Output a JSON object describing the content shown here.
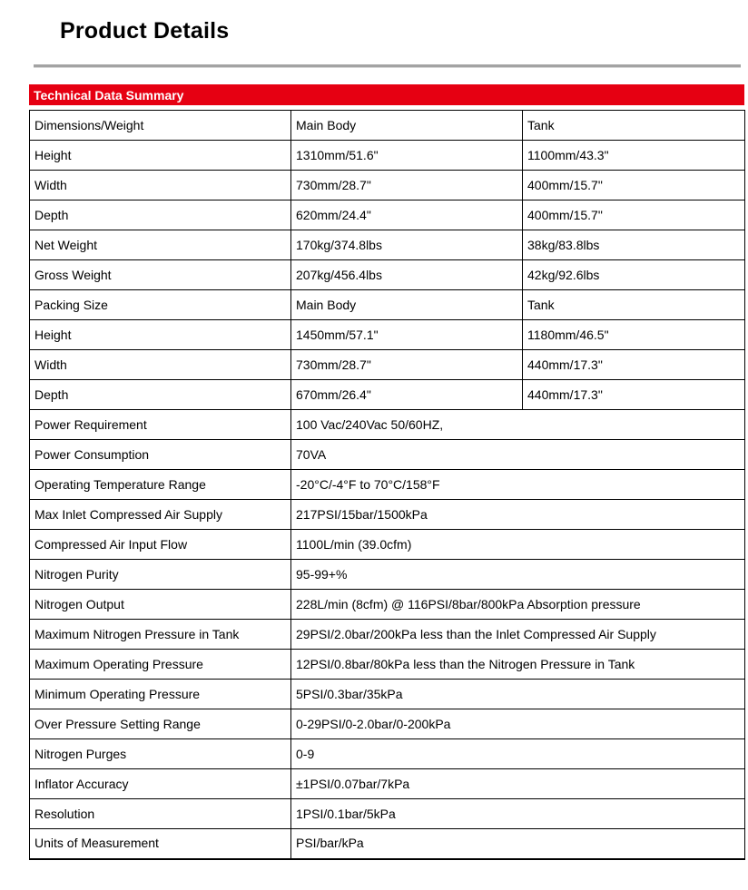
{
  "page_title": "Product Details",
  "section": {
    "header": "Technical Data Summary"
  },
  "colors": {
    "accent_red": "#e60012",
    "table_border": "#000000",
    "rule_gray": "#a3a3a3",
    "header_text": "#ffffff"
  },
  "table": {
    "rows": [
      {
        "cells": [
          "Dimensions/Weight",
          "Main Body",
          "Tank"
        ]
      },
      {
        "cells": [
          "Height",
          "1310mm/51.6\"",
          "1100mm/43.3\""
        ]
      },
      {
        "cells": [
          "Width",
          "730mm/28.7\"",
          "400mm/15.7\""
        ]
      },
      {
        "cells": [
          "Depth",
          "620mm/24.4\"",
          "400mm/15.7\""
        ]
      },
      {
        "cells": [
          "Net Weight",
          "170kg/374.8lbs",
          "38kg/83.8lbs"
        ]
      },
      {
        "cells": [
          "Gross Weight",
          "207kg/456.4lbs",
          "42kg/92.6lbs"
        ]
      },
      {
        "cells": [
          "Packing Size",
          "Main Body",
          "Tank"
        ]
      },
      {
        "cells": [
          "Height",
          "1450mm/57.1\"",
          "1180mm/46.5\""
        ]
      },
      {
        "cells": [
          "Width",
          "730mm/28.7\"",
          "440mm/17.3\""
        ]
      },
      {
        "cells": [
          "Depth",
          "670mm/26.4\"",
          "440mm/17.3\""
        ]
      },
      {
        "cells": [
          "Power Requirement",
          "100 Vac/240Vac 50/60HZ,"
        ]
      },
      {
        "cells": [
          "Power Consumption",
          "70VA"
        ]
      },
      {
        "cells": [
          "Operating Temperature Range",
          "-20°C/-4°F to 70°C/158°F"
        ]
      },
      {
        "cells": [
          "Max Inlet Compressed Air Supply",
          "217PSI/15bar/1500kPa"
        ]
      },
      {
        "cells": [
          "Compressed Air Input Flow",
          "1100L/min (39.0cfm)"
        ]
      },
      {
        "cells": [
          "Nitrogen Purity",
          "95-99+%"
        ]
      },
      {
        "cells": [
          "Nitrogen Output",
          "228L/min (8cfm) @ 116PSI/8bar/800kPa Absorption pressure"
        ]
      },
      {
        "cells": [
          "Maximum Nitrogen Pressure in Tank",
          "29PSI/2.0bar/200kPa less than the Inlet Compressed Air Supply"
        ]
      },
      {
        "cells": [
          "Maximum Operating Pressure",
          "12PSI/0.8bar/80kPa less than the Nitrogen Pressure in Tank"
        ]
      },
      {
        "cells": [
          "Minimum Operating Pressure",
          "5PSI/0.3bar/35kPa"
        ]
      },
      {
        "cells": [
          "Over Pressure Setting Range",
          "0-29PSI/0-2.0bar/0-200kPa"
        ]
      },
      {
        "cells": [
          "Nitrogen Purges",
          "0-9"
        ]
      },
      {
        "cells": [
          "Inflator Accuracy",
          "±1PSI/0.07bar/7kPa"
        ]
      },
      {
        "cells": [
          "Resolution",
          "1PSI/0.1bar/5kPa"
        ]
      },
      {
        "cells": [
          "Units of Measurement",
          "PSI/bar/kPa"
        ]
      }
    ]
  }
}
